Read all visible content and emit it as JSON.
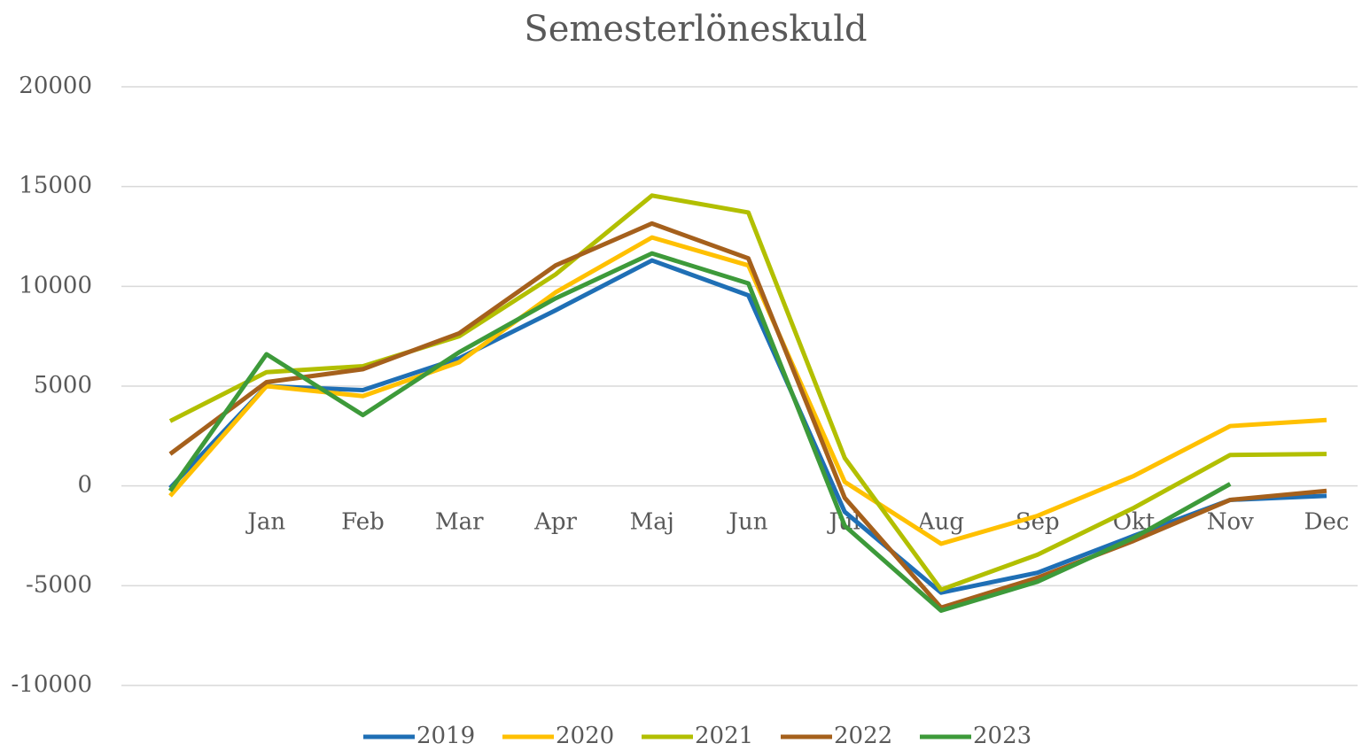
{
  "chart_data": {
    "type": "line",
    "title": "Semesterlöneskuld",
    "categories": [
      null,
      "Jan",
      "Feb",
      "Mar",
      "Apr",
      "Maj",
      "Jun",
      "Jul",
      "Aug",
      "Sep",
      "Okt",
      "Nov",
      "Dec"
    ],
    "series": [
      {
        "name": "2019",
        "color": "#1f6fb5",
        "values": [
          -100,
          5000,
          4800,
          6400,
          8800,
          11300,
          9550,
          -1300,
          -5350,
          -4350,
          -2500,
          -700,
          -500
        ]
      },
      {
        "name": "2020",
        "color": "#ffc000",
        "values": [
          -500,
          5000,
          4500,
          6200,
          9700,
          12450,
          11050,
          200,
          -2900,
          -1500,
          500,
          3000,
          3300
        ]
      },
      {
        "name": "2021",
        "color": "#b2bf00",
        "values": [
          3250,
          5700,
          6000,
          7500,
          10600,
          14550,
          13700,
          1400,
          -5200,
          -3450,
          -1100,
          1550,
          1600
        ]
      },
      {
        "name": "2022",
        "color": "#a5601c",
        "values": [
          1600,
          5200,
          5850,
          7650,
          11050,
          13150,
          11400,
          -600,
          -6100,
          -4600,
          -2750,
          -700,
          -250
        ]
      },
      {
        "name": "2023",
        "color": "#3d9a3a",
        "values": [
          -250,
          6600,
          3550,
          6700,
          9400,
          11650,
          10150,
          -2000,
          -6250,
          -4800,
          -2600,
          100,
          null
        ]
      }
    ],
    "ylim": [
      -10000,
      20000
    ],
    "yticks": [
      -10000,
      -5000,
      0,
      5000,
      10000,
      15000,
      20000
    ],
    "grid": true,
    "legend": "bottom"
  }
}
